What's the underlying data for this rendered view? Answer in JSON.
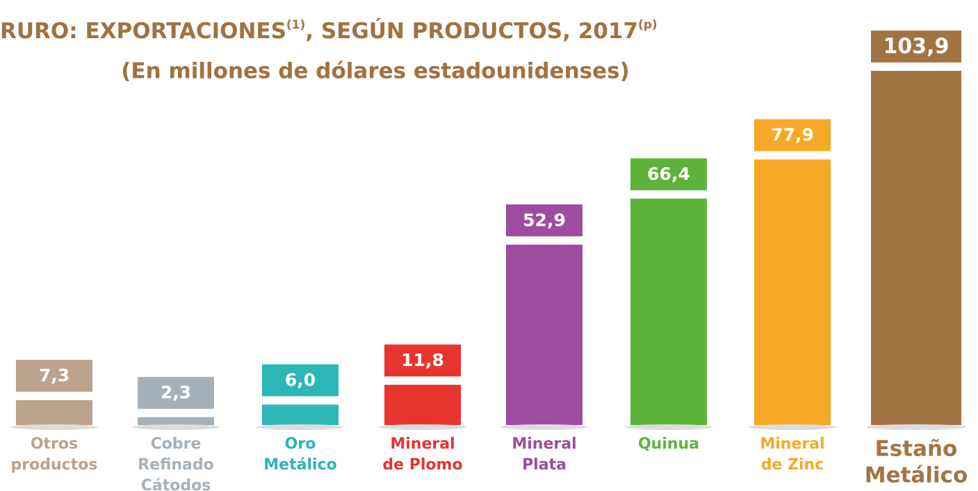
{
  "chart_data": {
    "type": "bar",
    "title": [
      "RURO: EXPORTACIONES",
      "(1)",
      ", SEGÚN PRODUCTOS, 2017",
      "(p)"
    ],
    "subtitle": "(En millones de dólares estadounidenses)",
    "categories": [
      [
        "Otros",
        "productos"
      ],
      [
        "Cobre",
        "Refinado",
        "Cátodos"
      ],
      [
        "Oro",
        "Metálico"
      ],
      [
        "Mineral",
        "de Plomo"
      ],
      [
        "Mineral",
        "Plata"
      ],
      [
        "Quinua"
      ],
      [
        "Mineral",
        "de Zinc"
      ],
      [
        "Estaño",
        "Metálico"
      ]
    ],
    "values": [
      7.3,
      2.3,
      6.0,
      11.8,
      52.9,
      66.4,
      77.9,
      103.9
    ],
    "value_labels": [
      "7,3",
      "2,3",
      "6,0",
      "11,8",
      "52,9",
      "66,4",
      "77,9",
      "103,9"
    ],
    "colors": [
      "#bba38c",
      "#a6b0b8",
      "#2cb6b6",
      "#e8342f",
      "#9d4c9f",
      "#5cb43b",
      "#f6a925",
      "#a27444"
    ],
    "ylim": [
      0,
      110
    ]
  }
}
